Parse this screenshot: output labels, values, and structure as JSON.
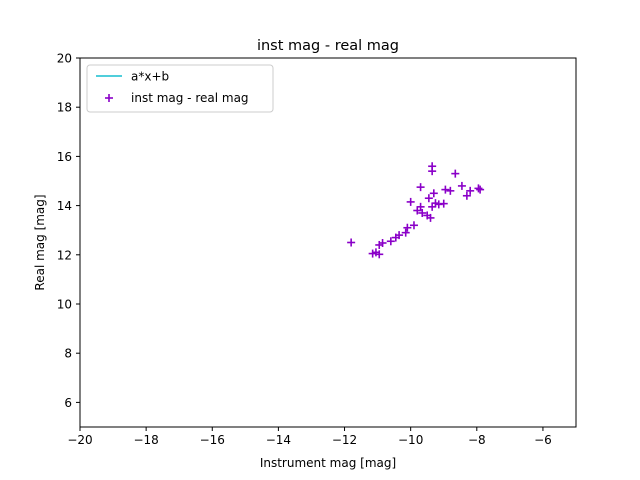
{
  "chart_data": {
    "type": "scatter",
    "title": "inst mag - real mag",
    "xlabel": "Instrument mag [mag]",
    "ylabel": "Real mag [mag]",
    "xlim": [
      -20,
      -5
    ],
    "ylim": [
      5,
      20
    ],
    "x_ticks": [
      -20,
      -18,
      -16,
      -14,
      -12,
      -10,
      -8,
      -6
    ],
    "y_ticks": [
      6,
      8,
      10,
      12,
      14,
      16,
      18,
      20
    ],
    "x_tick_labels": [
      "−20",
      "−18",
      "−16",
      "−14",
      "−12",
      "−10",
      "−8",
      "−6"
    ],
    "y_tick_labels": [
      "6",
      "8",
      "10",
      "12",
      "14",
      "16",
      "18",
      "20"
    ],
    "grid": false,
    "legend_position": "upper-left",
    "legend": [
      {
        "label": "a*x+b",
        "kind": "line",
        "color": "#17becf"
      },
      {
        "label": "inst mag - real mag",
        "kind": "plus-marker",
        "color": "#8a00c8"
      }
    ],
    "series": [
      {
        "name": "inst mag - real mag",
        "marker": "plus",
        "color": "#8a00c8",
        "points": [
          [
            -11.8,
            12.5
          ],
          [
            -11.15,
            12.05
          ],
          [
            -11.05,
            12.1
          ],
          [
            -10.95,
            12.02
          ],
          [
            -10.95,
            12.4
          ],
          [
            -10.85,
            12.48
          ],
          [
            -10.6,
            12.55
          ],
          [
            -10.45,
            12.7
          ],
          [
            -10.35,
            12.8
          ],
          [
            -10.15,
            12.9
          ],
          [
            -10.1,
            13.1
          ],
          [
            -9.9,
            13.2
          ],
          [
            -10.0,
            14.15
          ],
          [
            -9.8,
            13.8
          ],
          [
            -9.7,
            13.95
          ],
          [
            -9.65,
            13.7
          ],
          [
            -9.7,
            14.75
          ],
          [
            -9.5,
            13.6
          ],
          [
            -9.4,
            13.5
          ],
          [
            -9.45,
            14.3
          ],
          [
            -9.35,
            13.95
          ],
          [
            -9.3,
            14.5
          ],
          [
            -9.25,
            14.1
          ],
          [
            -9.35,
            15.4
          ],
          [
            -9.35,
            15.6
          ],
          [
            -9.15,
            14.05
          ],
          [
            -9.0,
            14.08
          ],
          [
            -8.95,
            14.65
          ],
          [
            -8.8,
            14.6
          ],
          [
            -8.65,
            15.3
          ],
          [
            -8.45,
            14.8
          ],
          [
            -8.3,
            14.4
          ],
          [
            -8.2,
            14.6
          ],
          [
            -7.95,
            14.7
          ],
          [
            -7.9,
            14.65
          ]
        ]
      }
    ]
  }
}
